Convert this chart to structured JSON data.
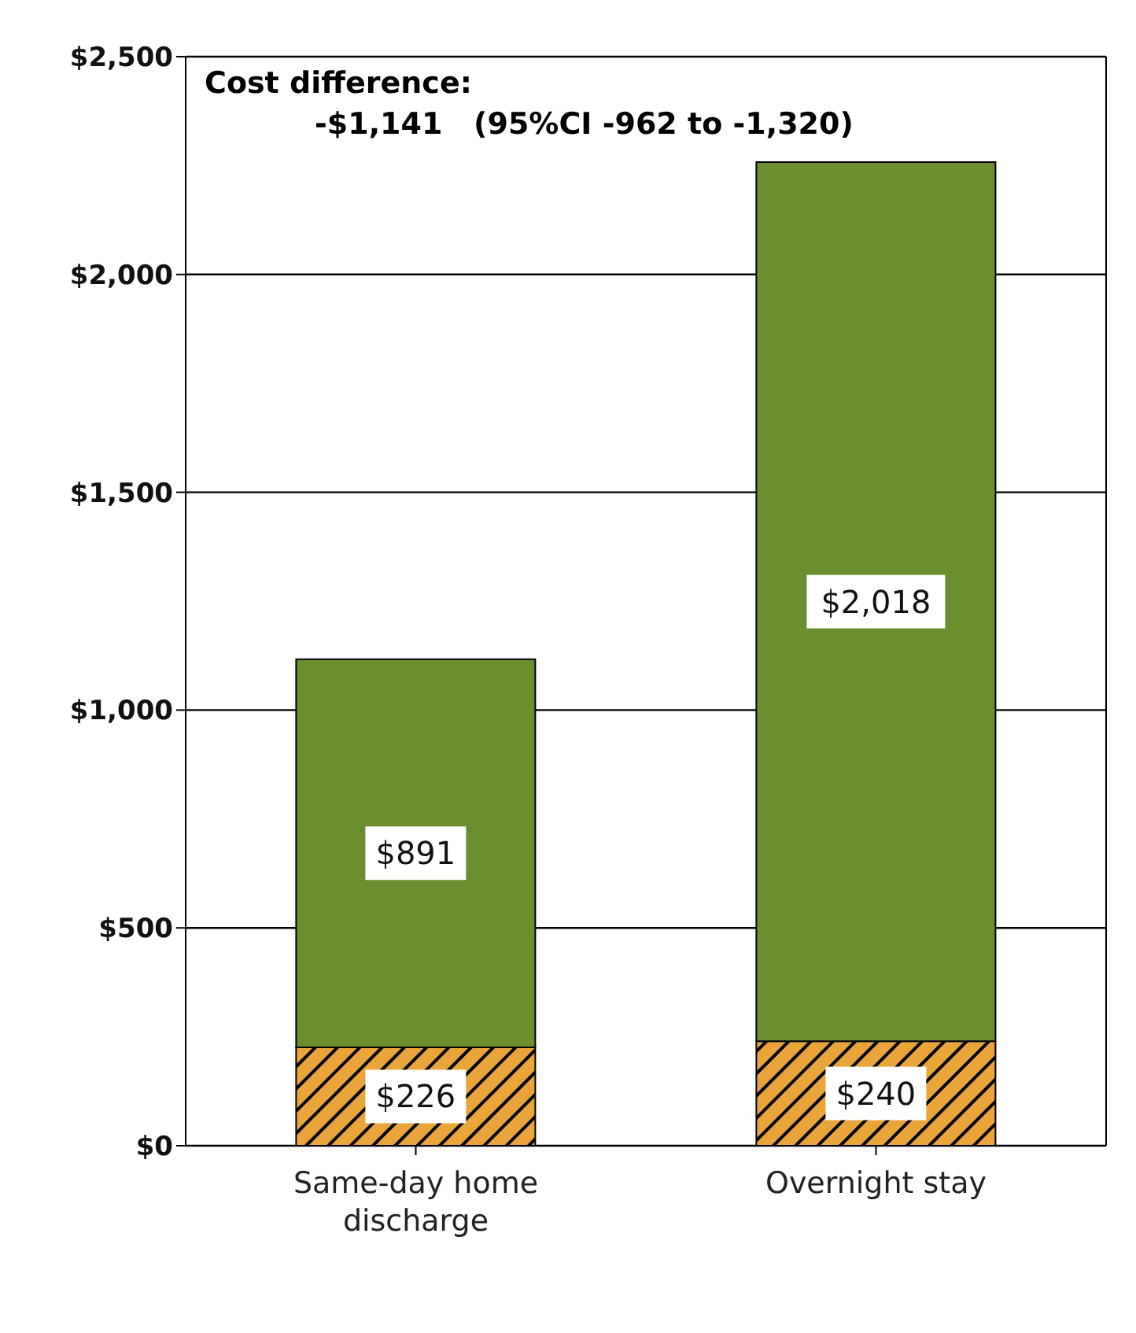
{
  "chart_data": {
    "type": "bar",
    "stacked": true,
    "categories": [
      "Same-day home discharge",
      "Overnight stay"
    ],
    "series": [
      {
        "color": "#e9a53a",
        "values": [
          226,
          240
        ],
        "value_labels": [
          "$226",
          "$240"
        ]
      },
      {
        "color": "#6b8e2e",
        "values": [
          891,
          2018
        ],
        "value_labels": [
          "$891",
          "$2,018"
        ]
      }
    ],
    "ylim": [
      0,
      2500
    ],
    "yticks": [
      {
        "value": 0,
        "label": "$0"
      },
      {
        "value": 500,
        "label": "$500"
      },
      {
        "value": 1000,
        "label": "$1,000"
      },
      {
        "value": 1500,
        "label": "$1,500"
      },
      {
        "value": 2000,
        "label": "$2,000"
      },
      {
        "value": 2500,
        "label": "$2,500"
      }
    ],
    "grid": "y",
    "legend": false,
    "annotations": [
      "Cost difference:",
      "-$1,141   (95%CI -962 to -1,320)"
    ]
  }
}
